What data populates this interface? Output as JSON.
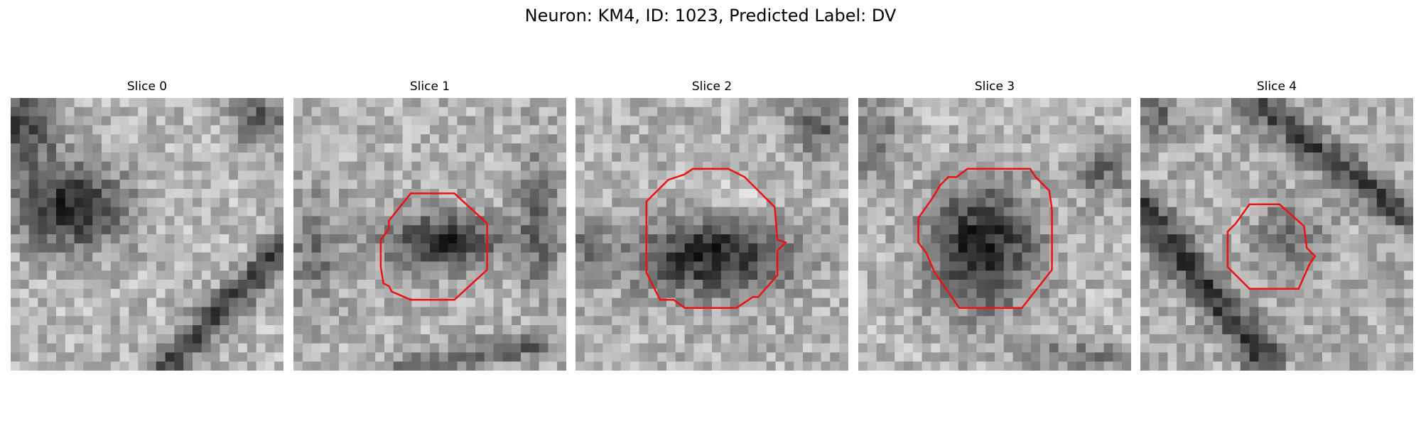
{
  "figure": {
    "title": "Neuron: KM4, ID: 1023, Predicted Label: DV"
  },
  "colors": {
    "contour": "#ee1111",
    "background": "#ffffff"
  },
  "panels": [
    {
      "title": "Slice 0",
      "has_contour": false
    },
    {
      "title": "Slice 1",
      "has_contour": true
    },
    {
      "title": "Slice 2",
      "has_contour": true
    },
    {
      "title": "Slice 3",
      "has_contour": true
    },
    {
      "title": "Slice 4",
      "has_contour": true
    }
  ]
}
